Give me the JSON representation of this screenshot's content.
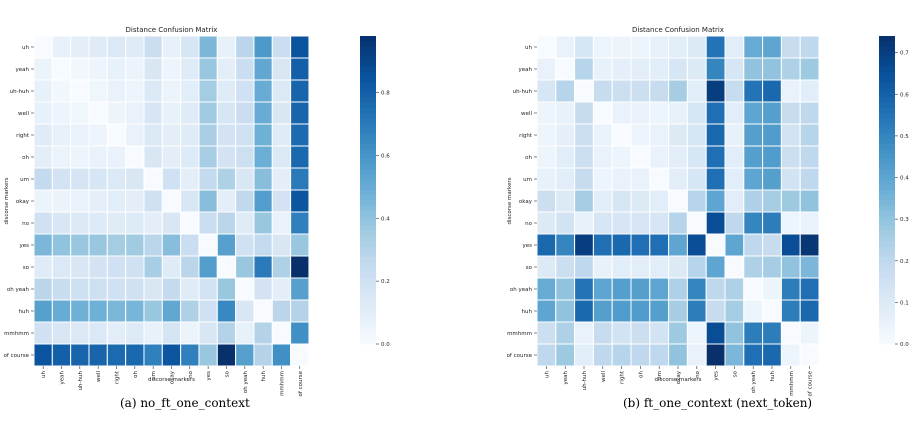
{
  "figure": {
    "captions": [
      "(a) no_ft_one_context",
      "(b) ft_one_context (next_token)"
    ]
  },
  "chart_data": [
    {
      "type": "heatmap",
      "title": "Distance Confusion Matrix",
      "xlabel": "discorse markers",
      "ylabel": "discorse markers",
      "labels": [
        "uh",
        "yeah",
        "uh-huh",
        "well",
        "right",
        "oh",
        "um",
        "okay",
        "no",
        "yes",
        "so",
        "oh yeah",
        "huh",
        "mmhmm",
        "of course"
      ],
      "colorbar": {
        "min": 0.0,
        "max": 0.98,
        "ticks": [
          0.0,
          0.2,
          0.4,
          0.6,
          0.8
        ]
      },
      "colormap": "Blues",
      "grid": true,
      "values": [
        [
          0.0,
          0.08,
          0.1,
          0.12,
          0.14,
          0.12,
          0.22,
          0.08,
          0.16,
          0.45,
          0.08,
          0.28,
          0.58,
          0.22,
          0.85
        ],
        [
          0.06,
          0.0,
          0.03,
          0.05,
          0.08,
          0.06,
          0.15,
          0.05,
          0.12,
          0.38,
          0.1,
          0.22,
          0.52,
          0.15,
          0.8
        ],
        [
          0.08,
          0.03,
          0.0,
          0.04,
          0.07,
          0.05,
          0.14,
          0.06,
          0.11,
          0.35,
          0.12,
          0.2,
          0.5,
          0.14,
          0.78
        ],
        [
          0.08,
          0.05,
          0.04,
          0.0,
          0.05,
          0.07,
          0.16,
          0.08,
          0.12,
          0.36,
          0.16,
          0.22,
          0.5,
          0.15,
          0.78
        ],
        [
          0.12,
          0.08,
          0.07,
          0.05,
          0.0,
          0.07,
          0.14,
          0.1,
          0.12,
          0.33,
          0.18,
          0.2,
          0.48,
          0.12,
          0.76
        ],
        [
          0.1,
          0.06,
          0.05,
          0.07,
          0.07,
          0.0,
          0.15,
          0.1,
          0.13,
          0.34,
          0.18,
          0.21,
          0.49,
          0.14,
          0.77
        ],
        [
          0.25,
          0.18,
          0.17,
          0.16,
          0.14,
          0.15,
          0.0,
          0.2,
          0.1,
          0.25,
          0.32,
          0.15,
          0.42,
          0.1,
          0.7
        ],
        [
          0.06,
          0.06,
          0.07,
          0.09,
          0.11,
          0.1,
          0.2,
          0.0,
          0.15,
          0.42,
          0.1,
          0.26,
          0.56,
          0.18,
          0.84
        ],
        [
          0.2,
          0.15,
          0.14,
          0.13,
          0.12,
          0.13,
          0.1,
          0.15,
          0.0,
          0.22,
          0.28,
          0.12,
          0.38,
          0.07,
          0.68
        ],
        [
          0.45,
          0.4,
          0.38,
          0.38,
          0.35,
          0.36,
          0.28,
          0.42,
          0.22,
          0.0,
          0.55,
          0.2,
          0.25,
          0.15,
          0.38
        ],
        [
          0.12,
          0.14,
          0.15,
          0.18,
          0.2,
          0.2,
          0.34,
          0.12,
          0.28,
          0.56,
          0.0,
          0.38,
          0.7,
          0.32,
          0.98
        ],
        [
          0.28,
          0.23,
          0.21,
          0.21,
          0.2,
          0.2,
          0.15,
          0.25,
          0.12,
          0.18,
          0.38,
          0.0,
          0.18,
          0.1,
          0.55
        ],
        [
          0.55,
          0.5,
          0.48,
          0.48,
          0.45,
          0.46,
          0.38,
          0.52,
          0.32,
          0.2,
          0.65,
          0.15,
          0.0,
          0.28,
          0.3
        ],
        [
          0.2,
          0.15,
          0.14,
          0.14,
          0.11,
          0.13,
          0.08,
          0.17,
          0.06,
          0.15,
          0.3,
          0.08,
          0.3,
          0.0,
          0.62
        ],
        [
          0.85,
          0.8,
          0.78,
          0.78,
          0.76,
          0.77,
          0.68,
          0.84,
          0.68,
          0.38,
          0.98,
          0.55,
          0.3,
          0.62,
          0.0
        ]
      ]
    },
    {
      "type": "heatmap",
      "title": "Distance Confusion Matrix",
      "xlabel": "discorse markers",
      "ylabel": "discorse markers",
      "labels": [
        "uh",
        "yeah",
        "uh-huh",
        "well",
        "right",
        "oh",
        "um",
        "okay",
        "no",
        "yes",
        "so",
        "oh yeah",
        "huh",
        "mmhmm",
        "of course"
      ],
      "colorbar": {
        "min": 0.0,
        "max": 0.74,
        "ticks": [
          0.0,
          0.1,
          0.2,
          0.3,
          0.4,
          0.5,
          0.6,
          0.7
        ]
      },
      "colormap": "Blues",
      "grid": true,
      "values": [
        [
          0.0,
          0.05,
          0.12,
          0.04,
          0.04,
          0.04,
          0.06,
          0.08,
          0.1,
          0.55,
          0.08,
          0.38,
          0.4,
          0.18,
          0.2
        ],
        [
          0.05,
          0.0,
          0.22,
          0.06,
          0.07,
          0.08,
          0.08,
          0.12,
          0.1,
          0.5,
          0.12,
          0.3,
          0.3,
          0.24,
          0.28
        ],
        [
          0.12,
          0.22,
          0.0,
          0.18,
          0.16,
          0.16,
          0.18,
          0.26,
          0.08,
          0.7,
          0.18,
          0.55,
          0.58,
          0.05,
          0.08
        ],
        [
          0.04,
          0.06,
          0.18,
          0.0,
          0.05,
          0.05,
          0.04,
          0.06,
          0.12,
          0.56,
          0.08,
          0.4,
          0.42,
          0.18,
          0.2
        ],
        [
          0.04,
          0.07,
          0.16,
          0.05,
          0.0,
          0.04,
          0.05,
          0.1,
          0.12,
          0.58,
          0.06,
          0.42,
          0.43,
          0.14,
          0.22
        ],
        [
          0.04,
          0.08,
          0.16,
          0.05,
          0.04,
          0.0,
          0.05,
          0.08,
          0.12,
          0.56,
          0.08,
          0.42,
          0.43,
          0.16,
          0.2
        ],
        [
          0.06,
          0.08,
          0.18,
          0.04,
          0.05,
          0.05,
          0.0,
          0.08,
          0.12,
          0.56,
          0.08,
          0.4,
          0.42,
          0.14,
          0.2
        ],
        [
          0.16,
          0.1,
          0.26,
          0.08,
          0.12,
          0.1,
          0.08,
          0.0,
          0.22,
          0.4,
          0.08,
          0.24,
          0.26,
          0.28,
          0.3
        ],
        [
          0.1,
          0.14,
          0.06,
          0.12,
          0.12,
          0.12,
          0.12,
          0.22,
          0.0,
          0.66,
          0.2,
          0.5,
          0.52,
          0.04,
          0.05
        ],
        [
          0.58,
          0.5,
          0.7,
          0.56,
          0.58,
          0.56,
          0.56,
          0.4,
          0.66,
          0.0,
          0.4,
          0.2,
          0.18,
          0.66,
          0.72
        ],
        [
          0.1,
          0.16,
          0.2,
          0.06,
          0.08,
          0.08,
          0.08,
          0.1,
          0.22,
          0.4,
          0.0,
          0.24,
          0.26,
          0.3,
          0.34
        ],
        [
          0.38,
          0.3,
          0.55,
          0.4,
          0.42,
          0.42,
          0.4,
          0.24,
          0.5,
          0.2,
          0.24,
          0.0,
          0.04,
          0.52,
          0.56
        ],
        [
          0.4,
          0.3,
          0.58,
          0.42,
          0.43,
          0.43,
          0.42,
          0.26,
          0.52,
          0.18,
          0.26,
          0.04,
          0.0,
          0.52,
          0.58
        ],
        [
          0.16,
          0.24,
          0.05,
          0.18,
          0.14,
          0.16,
          0.14,
          0.28,
          0.04,
          0.66,
          0.3,
          0.52,
          0.52,
          0.0,
          0.04
        ],
        [
          0.2,
          0.28,
          0.08,
          0.2,
          0.22,
          0.2,
          0.2,
          0.3,
          0.05,
          0.74,
          0.34,
          0.56,
          0.58,
          0.04,
          0.0
        ]
      ]
    }
  ]
}
